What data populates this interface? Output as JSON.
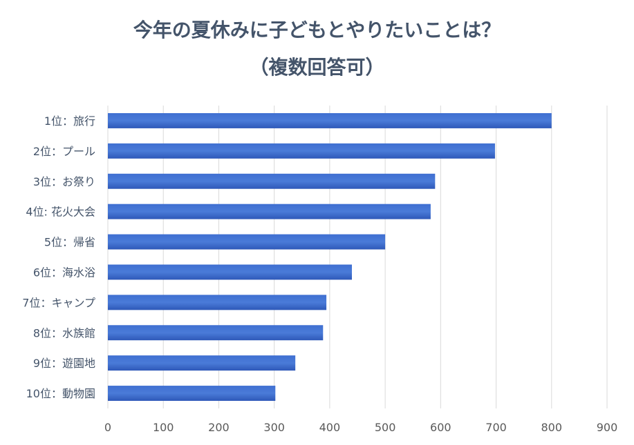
{
  "chart_data": {
    "type": "bar",
    "orientation": "horizontal",
    "title_line1": "今年の夏休みに子どもとやりたいことは？",
    "title_line2": "（複数回答可）",
    "categories": [
      "1位：旅行",
      "2位：プール",
      "3位：お祭り",
      "4位:  花火大会",
      "5位：帰省",
      "6位：海水浴",
      "7位：キャンプ",
      "8位：水族館",
      "9位：遊園地",
      "10位：動物園"
    ],
    "values": [
      800,
      698,
      590,
      582,
      500,
      440,
      394,
      388,
      338,
      302
    ],
    "xlim": [
      0,
      900
    ],
    "xticks": [
      "0",
      "100",
      "200",
      "300",
      "400",
      "500",
      "600",
      "700",
      "800",
      "900"
    ],
    "grid": "vertical",
    "legend": "none",
    "colors": {
      "bar_top": "#3f6fd1",
      "bar_bottom": "#2e58b8",
      "grid": "#d9d9d9"
    }
  }
}
